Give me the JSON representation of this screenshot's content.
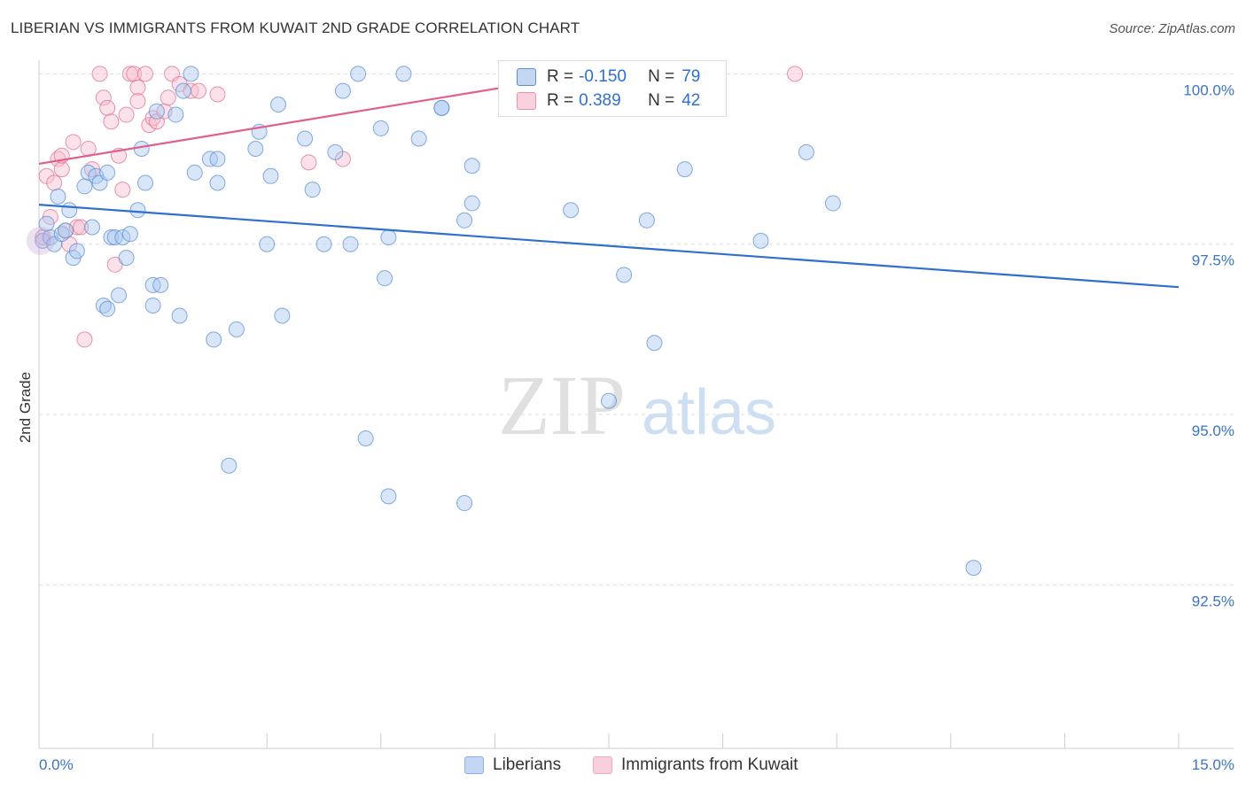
{
  "title": "LIBERIAN VS IMMIGRANTS FROM KUWAIT 2ND GRADE CORRELATION CHART",
  "source": "Source: ZipAtlas.com",
  "watermark": {
    "zip": "ZIP",
    "atlas": "atlas"
  },
  "legend": {
    "rows": [
      {
        "r_label": "R =",
        "r_value": "-0.150",
        "n_label": "N =",
        "n_value": "79",
        "color": "#5b8fd6"
      },
      {
        "r_label": "R =",
        "r_value": "0.389",
        "n_label": "N =",
        "n_value": "42",
        "color": "#e892b0"
      }
    ]
  },
  "bottom_legend": [
    {
      "label": "Liberians",
      "color": "#a9c7ef"
    },
    {
      "label": "Immigrants from Kuwait",
      "color": "#f6bfd0"
    }
  ],
  "chart_data": {
    "type": "scatter",
    "title": "LIBERIAN VS IMMIGRANTS FROM KUWAIT 2ND GRADE CORRELATION CHART",
    "xlabel": "",
    "ylabel": "2nd Grade",
    "xlim": [
      0,
      15
    ],
    "ylim": [
      90.1,
      100.2
    ],
    "x_tick_labels": [
      {
        "value": 0,
        "label": "0.0%"
      },
      {
        "value": 15,
        "label": "15.0%"
      }
    ],
    "y_tick_labels": [
      {
        "value": 100,
        "label": "100.0%"
      },
      {
        "value": 97.5,
        "label": "97.5%"
      },
      {
        "value": 95,
        "label": "95.0%"
      },
      {
        "value": 92.5,
        "label": "92.5%"
      }
    ],
    "x_minor_ticks": [
      1.5,
      3,
      4.5,
      6,
      7.5,
      9,
      10.5,
      12,
      13.5,
      15
    ],
    "grid": true,
    "series": [
      {
        "name": "Liberians",
        "color": "#5b8fd6",
        "fill": "#a9c7ef",
        "trend": {
          "x": [
            0,
            15
          ],
          "y": [
            98.08,
            96.87
          ]
        },
        "points": [
          [
            0.05,
            97.55
          ],
          [
            0.1,
            97.8
          ],
          [
            0.15,
            97.6
          ],
          [
            0.2,
            97.5
          ],
          [
            0.25,
            98.2
          ],
          [
            0.3,
            97.65
          ],
          [
            0.35,
            97.7
          ],
          [
            0.4,
            98.0
          ],
          [
            0.45,
            97.3
          ],
          [
            0.5,
            97.4
          ],
          [
            0.6,
            98.35
          ],
          [
            0.65,
            98.55
          ],
          [
            0.7,
            97.75
          ],
          [
            0.75,
            98.5
          ],
          [
            0.8,
            98.4
          ],
          [
            0.85,
            96.6
          ],
          [
            0.9,
            96.55
          ],
          [
            0.9,
            98.55
          ],
          [
            0.95,
            97.6
          ],
          [
            1.0,
            97.6
          ],
          [
            1.05,
            96.75
          ],
          [
            1.1,
            97.6
          ],
          [
            1.15,
            97.3
          ],
          [
            1.2,
            97.65
          ],
          [
            1.3,
            98.0
          ],
          [
            1.35,
            98.9
          ],
          [
            1.4,
            98.4
          ],
          [
            1.5,
            96.6
          ],
          [
            1.5,
            96.9
          ],
          [
            1.55,
            99.45
          ],
          [
            1.6,
            96.9
          ],
          [
            1.8,
            99.4
          ],
          [
            1.85,
            96.45
          ],
          [
            1.9,
            99.75
          ],
          [
            2.0,
            100.0
          ],
          [
            2.05,
            98.55
          ],
          [
            2.25,
            98.75
          ],
          [
            2.3,
            96.1
          ],
          [
            2.35,
            98.4
          ],
          [
            2.35,
            98.75
          ],
          [
            2.5,
            94.25
          ],
          [
            2.6,
            96.25
          ],
          [
            2.85,
            98.9
          ],
          [
            2.9,
            99.15
          ],
          [
            3.0,
            97.5
          ],
          [
            3.05,
            98.5
          ],
          [
            3.15,
            99.55
          ],
          [
            3.2,
            96.45
          ],
          [
            3.5,
            99.05
          ],
          [
            3.6,
            98.3
          ],
          [
            3.75,
            97.5
          ],
          [
            3.9,
            98.85
          ],
          [
            4.0,
            99.75
          ],
          [
            4.1,
            97.5
          ],
          [
            4.2,
            100.0
          ],
          [
            4.3,
            94.65
          ],
          [
            4.5,
            99.2
          ],
          [
            4.55,
            97.0
          ],
          [
            4.6,
            97.6
          ],
          [
            4.6,
            93.8
          ],
          [
            4.8,
            100.0
          ],
          [
            5.0,
            99.05
          ],
          [
            5.3,
            99.5
          ],
          [
            5.3,
            99.5
          ],
          [
            5.6,
            97.85
          ],
          [
            5.6,
            93.7
          ],
          [
            5.7,
            98.65
          ],
          [
            5.7,
            98.1
          ],
          [
            7.0,
            98.0
          ],
          [
            7.5,
            95.2
          ],
          [
            7.7,
            97.05
          ],
          [
            8.0,
            97.85
          ],
          [
            8.1,
            96.05
          ],
          [
            8.5,
            98.6
          ],
          [
            9.5,
            97.55
          ],
          [
            10.1,
            98.85
          ],
          [
            10.45,
            98.1
          ],
          [
            12.3,
            92.75
          ],
          [
            6.15,
            100.0
          ]
        ]
      },
      {
        "name": "Immigrants from Kuwait",
        "color": "#e0708f",
        "fill": "#f6bfd0",
        "trend": {
          "x": [
            0,
            7.2
          ],
          "y": [
            98.68,
            100.0
          ]
        },
        "points": [
          [
            0.05,
            97.6
          ],
          [
            0.1,
            98.5
          ],
          [
            0.15,
            97.9
          ],
          [
            0.2,
            98.4
          ],
          [
            0.25,
            98.75
          ],
          [
            0.3,
            98.6
          ],
          [
            0.35,
            97.7
          ],
          [
            0.4,
            97.5
          ],
          [
            0.45,
            99.0
          ],
          [
            0.5,
            97.75
          ],
          [
            0.55,
            97.75
          ],
          [
            0.6,
            96.1
          ],
          [
            0.65,
            98.9
          ],
          [
            0.7,
            98.6
          ],
          [
            0.8,
            100.0
          ],
          [
            0.85,
            99.65
          ],
          [
            0.9,
            99.5
          ],
          [
            0.95,
            99.3
          ],
          [
            1.0,
            97.2
          ],
          [
            1.05,
            98.8
          ],
          [
            1.1,
            98.3
          ],
          [
            1.15,
            99.4
          ],
          [
            1.2,
            100.0
          ],
          [
            1.25,
            100.0
          ],
          [
            1.3,
            99.8
          ],
          [
            1.3,
            99.6
          ],
          [
            1.4,
            100.0
          ],
          [
            1.45,
            99.25
          ],
          [
            1.5,
            99.35
          ],
          [
            1.55,
            99.3
          ],
          [
            1.65,
            99.45
          ],
          [
            1.7,
            99.65
          ],
          [
            1.75,
            100.0
          ],
          [
            1.85,
            99.85
          ],
          [
            2.0,
            99.75
          ],
          [
            2.1,
            99.75
          ],
          [
            2.35,
            99.7
          ],
          [
            3.55,
            98.7
          ],
          [
            4.0,
            98.75
          ],
          [
            8.05,
            100.0
          ],
          [
            9.95,
            100.0
          ],
          [
            0.3,
            98.8
          ]
        ]
      }
    ]
  }
}
